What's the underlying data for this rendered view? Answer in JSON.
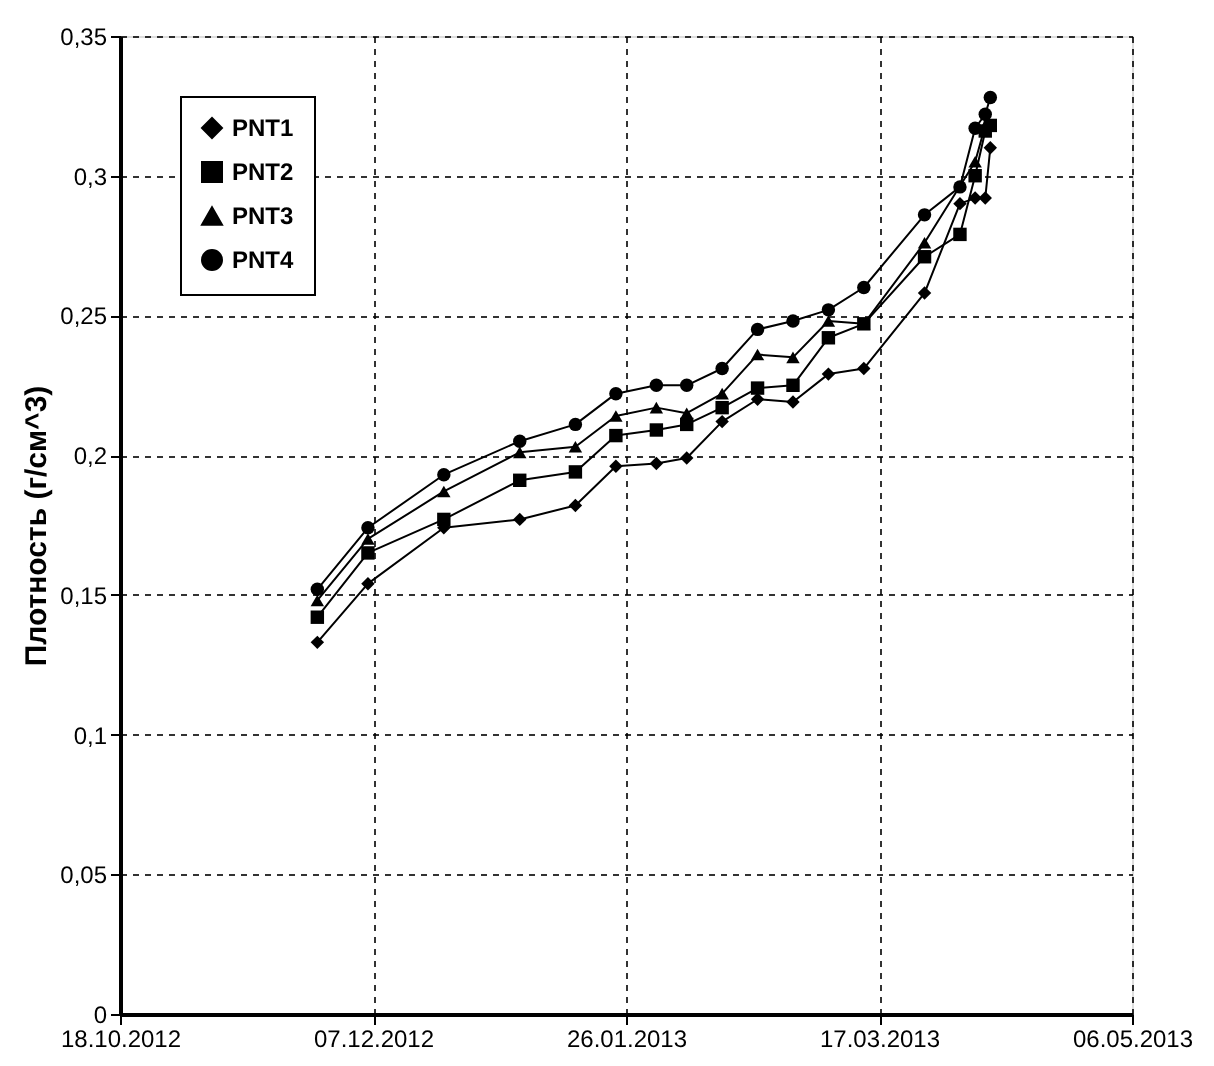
{
  "chart_data": {
    "type": "line",
    "ylabel": "Плотность (г/см^3)",
    "x": [
      "2012-11-26",
      "2012-12-06",
      "2012-12-21",
      "2013-01-05",
      "2013-01-16",
      "2013-01-24",
      "2013-02-01",
      "2013-02-07",
      "2013-02-14",
      "2013-02-21",
      "2013-02-28",
      "2013-03-07",
      "2013-03-14",
      "2013-03-26",
      "2013-04-02",
      "2013-04-05",
      "2013-04-07",
      "2013-04-08"
    ],
    "series": [
      {
        "name": "PNT1",
        "color": "#000000",
        "marker": "diamond",
        "values": [
          0.133,
          0.154,
          0.174,
          0.177,
          0.182,
          0.196,
          0.197,
          0.199,
          0.212,
          0.22,
          0.219,
          0.229,
          0.231,
          0.258,
          0.29,
          0.292,
          0.292,
          0.31
        ]
      },
      {
        "name": "PNT2",
        "color": "#000000",
        "marker": "square",
        "values": [
          0.142,
          0.165,
          0.177,
          0.191,
          0.194,
          0.207,
          0.209,
          0.211,
          0.217,
          0.224,
          0.225,
          0.242,
          0.247,
          0.271,
          0.279,
          0.3,
          0.316,
          0.318
        ]
      },
      {
        "name": "PNT3",
        "color": "#000000",
        "marker": "triangle",
        "values": [
          0.148,
          0.17,
          0.187,
          0.201,
          0.203,
          0.214,
          0.217,
          0.215,
          0.222,
          0.236,
          0.235,
          0.248,
          0.247,
          0.276,
          null,
          0.305,
          0.318,
          null
        ]
      },
      {
        "name": "PNT4",
        "color": "#000000",
        "marker": "circle",
        "values": [
          0.152,
          0.174,
          0.193,
          0.205,
          0.211,
          0.222,
          0.225,
          0.225,
          0.231,
          0.245,
          0.248,
          0.252,
          0.26,
          0.286,
          0.296,
          0.317,
          0.322,
          0.328
        ]
      }
    ],
    "xlim": [
      "2012-10-18",
      "2013-05-06"
    ],
    "xticks": [
      {
        "value": "2012-10-18",
        "label": "18.10.2012"
      },
      {
        "value": "2012-12-07",
        "label": "07.12.2012"
      },
      {
        "value": "2013-01-26",
        "label": "26.01.2013"
      },
      {
        "value": "2013-03-17",
        "label": "17.03.2013"
      },
      {
        "value": "2013-05-06",
        "label": "06.05.2013"
      }
    ],
    "ylim": [
      0,
      0.35
    ],
    "yticks": [
      {
        "value": 0,
        "label": "0"
      },
      {
        "value": 0.05,
        "label": "0,05"
      },
      {
        "value": 0.1,
        "label": "0,1"
      },
      {
        "value": 0.15,
        "label": "0,15"
      },
      {
        "value": 0.2,
        "label": "0,2"
      },
      {
        "value": 0.25,
        "label": "0,25"
      },
      {
        "value": 0.3,
        "label": "0,3"
      },
      {
        "value": 0.35,
        "label": "0,35"
      }
    ],
    "grid": true,
    "legend": "top left",
    "line_style": "solid"
  }
}
